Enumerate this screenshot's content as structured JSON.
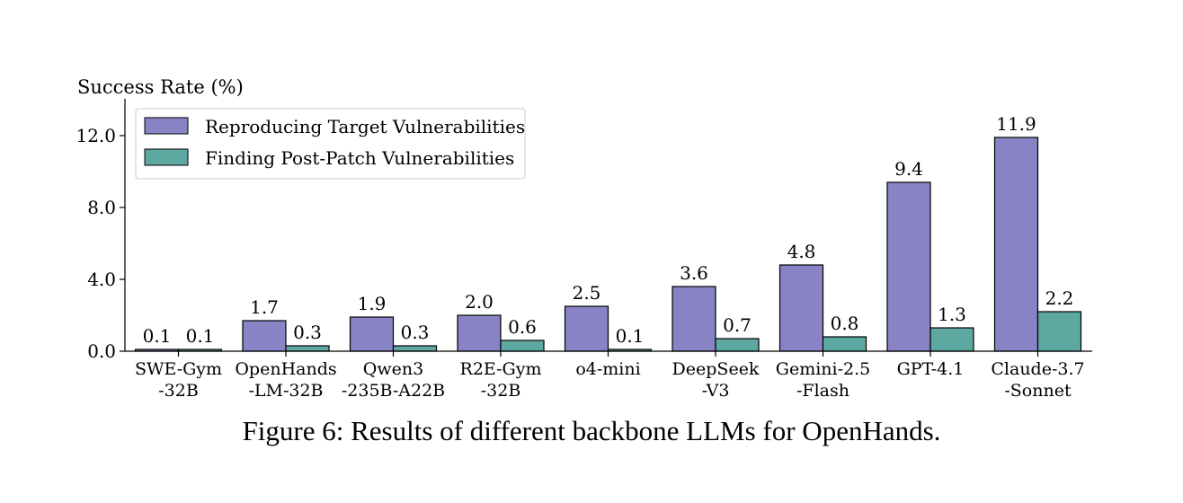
{
  "caption": "Figure 6: Results of different backbone LLMs for OpenHands.",
  "chart_data": {
    "type": "bar",
    "ylabel": "Success Rate (%)",
    "xlabel": "",
    "ylim": [
      0,
      14
    ],
    "yticks": [
      "0.0",
      "4.0",
      "8.0",
      "12.0"
    ],
    "ytick_values": [
      0,
      4,
      8,
      12
    ],
    "grid": false,
    "legend_position": "top-left",
    "categories": [
      [
        "SWE-Gym",
        "-32B"
      ],
      [
        "OpenHands",
        "-LM-32B"
      ],
      [
        "Qwen3",
        "-235B-A22B"
      ],
      [
        "R2E-Gym",
        "-32B"
      ],
      [
        "o4-mini"
      ],
      [
        "DeepSeek",
        "-V3"
      ],
      [
        "Gemini-2.5",
        "-Flash"
      ],
      [
        "GPT-4.1"
      ],
      [
        "Claude-3.7",
        "-Sonnet"
      ]
    ],
    "series": [
      {
        "name": "Reproducing Target Vulnerabilities",
        "color": "#8883c4",
        "values": [
          0.1,
          1.7,
          1.9,
          2.0,
          2.5,
          3.6,
          4.8,
          9.4,
          11.9
        ],
        "labels": [
          "0.1",
          "1.7",
          "1.9",
          "2.0",
          "2.5",
          "3.6",
          "4.8",
          "9.4",
          "11.9"
        ]
      },
      {
        "name": "Finding Post-Patch Vulnerabilities",
        "color": "#5ea8a2",
        "values": [
          0.1,
          0.3,
          0.3,
          0.6,
          0.1,
          0.7,
          0.8,
          1.3,
          2.2
        ],
        "labels": [
          "0.1",
          "0.3",
          "0.3",
          "0.6",
          "0.1",
          "0.7",
          "0.8",
          "1.3",
          "2.2"
        ]
      }
    ]
  }
}
